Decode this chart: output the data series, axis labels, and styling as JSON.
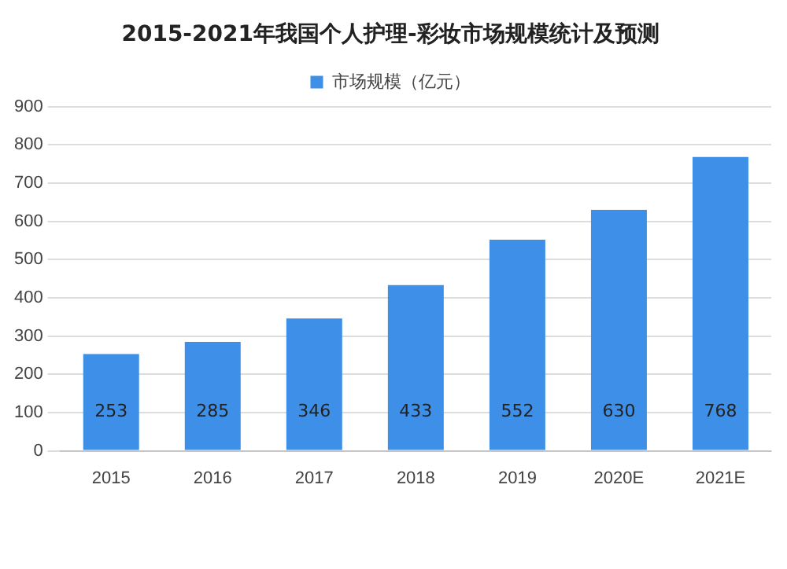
{
  "chart_data": {
    "type": "bar",
    "title": "2015-2021年我国个人护理-彩妆市场规模统计及预测",
    "categories": [
      "2015",
      "2016",
      "2017",
      "2018",
      "2019",
      "2020E",
      "2021E"
    ],
    "series": [
      {
        "name": "市场规模（亿元）",
        "color": "#3d8fe8",
        "values": [
          253,
          285,
          346,
          433,
          552,
          630,
          768
        ]
      }
    ],
    "ylim": [
      0,
      900
    ],
    "yticks": [
      0,
      100,
      200,
      300,
      400,
      500,
      600,
      700,
      800,
      900
    ],
    "grid": "y",
    "legend": "top",
    "data_labels": true
  }
}
